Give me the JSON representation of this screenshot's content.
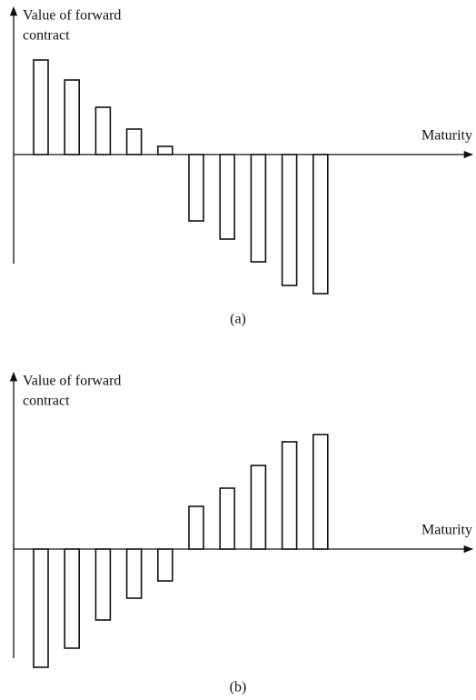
{
  "chart_data": [
    {
      "type": "bar",
      "y_label": [
        "Value of forward",
        "contract"
      ],
      "x_label": "Maturity",
      "caption": "(a)",
      "values": [
        104,
        82,
        52,
        28,
        9,
        -73,
        -93,
        -118,
        -144,
        -153
      ],
      "ylim": [
        -160,
        162
      ],
      "color": "#ffffff"
    },
    {
      "type": "bar",
      "y_label": [
        "Value of forward",
        "contract"
      ],
      "x_label": "Maturity",
      "caption": "(b)",
      "values": [
        -130,
        -109,
        -78,
        -54,
        -35,
        47,
        67,
        92,
        118,
        126
      ],
      "ylim": [
        -140,
        194
      ],
      "color": "#ffffff"
    }
  ]
}
